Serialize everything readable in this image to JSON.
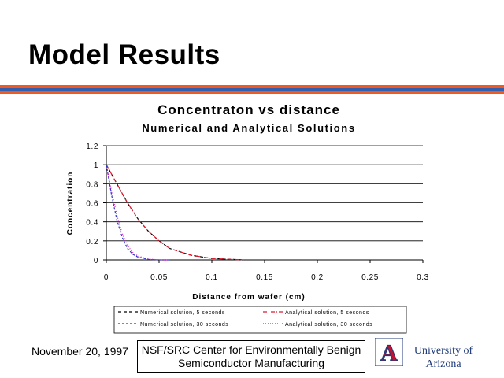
{
  "slide": {
    "title": "Model Results",
    "stripe_colors": [
      "#f05a22",
      "#2f5fb0",
      "#f05a22"
    ]
  },
  "chart_data": {
    "type": "line",
    "title": "Concentraton vs distance",
    "subtitle": "Numerical and Analytical Solutions",
    "xlabel": "Distance from wafer (cm)",
    "ylabel": "Concentration",
    "xlim": [
      0,
      0.3
    ],
    "ylim": [
      0,
      1.2
    ],
    "xticks": [
      "0",
      "0.05",
      "0.1",
      "0.15",
      "0.2",
      "0.25",
      "0.3"
    ],
    "yticks": [
      "0",
      "0.2",
      "0.4",
      "0.6",
      "0.8",
      "1",
      "1.2"
    ],
    "grid": "horizontal",
    "legend_position": "bottom",
    "series": [
      {
        "name": "Numerical solution, 5 seconds",
        "color": "#000000",
        "dash": "4,3",
        "x": [
          0,
          0.01,
          0.02,
          0.03,
          0.04,
          0.05,
          0.06,
          0.08,
          0.1,
          0.13
        ],
        "y": [
          1,
          0.8,
          0.6,
          0.43,
          0.3,
          0.2,
          0.12,
          0.05,
          0.015,
          0
        ]
      },
      {
        "name": "Analytical solution, 5 seconds",
        "color": "#e0182d",
        "dash": "5,2,1,2",
        "x": [
          0,
          0.01,
          0.02,
          0.03,
          0.04,
          0.05,
          0.06,
          0.08,
          0.1,
          0.13
        ],
        "y": [
          1,
          0.8,
          0.6,
          0.43,
          0.3,
          0.2,
          0.12,
          0.05,
          0.015,
          0
        ]
      },
      {
        "name": "Numerical solution, 30 seconds",
        "color": "#2d33c9",
        "dash": "3,2",
        "x": [
          0,
          0.005,
          0.01,
          0.015,
          0.02,
          0.025,
          0.03,
          0.04,
          0.05,
          0.06
        ],
        "y": [
          1,
          0.68,
          0.42,
          0.24,
          0.12,
          0.06,
          0.03,
          0.005,
          0,
          0
        ]
      },
      {
        "name": "Analytical solution, 30 seconds",
        "color": "#c51ec6",
        "dash": "1,2",
        "x": [
          0,
          0.005,
          0.01,
          0.015,
          0.02,
          0.025,
          0.03,
          0.04,
          0.05,
          0.06
        ],
        "y": [
          1,
          0.72,
          0.47,
          0.28,
          0.15,
          0.08,
          0.04,
          0.01,
          0,
          0
        ]
      }
    ]
  },
  "footer": {
    "date": "November 20, 1997",
    "center_line1": "NSF/SRC Center for Environmentally Benign",
    "center_line2": "Semiconductor Manufacturing",
    "logo_letter": "A",
    "university_line1": "University of",
    "university_line2": "Arizona"
  }
}
